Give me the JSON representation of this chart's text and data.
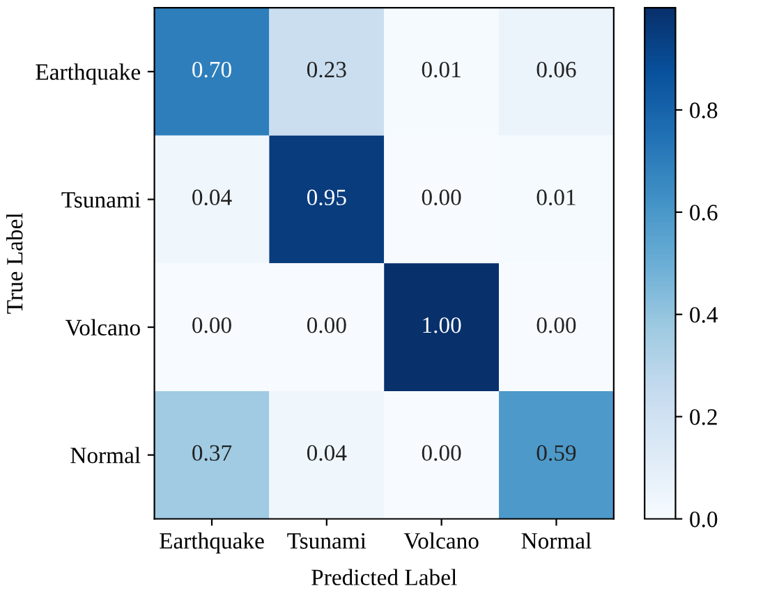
{
  "chart_data": {
    "type": "heatmap",
    "xlabel": "Predicted Label",
    "ylabel": "True Label",
    "categories": [
      "Earthquake",
      "Tsunami",
      "Volcano",
      "Normal"
    ],
    "y_categories": [
      "Earthquake",
      "Tsunami",
      "Volcano",
      "Normal"
    ],
    "cells": [
      [
        0.7,
        0.23,
        0.01,
        0.06
      ],
      [
        0.04,
        0.95,
        0.0,
        0.01
      ],
      [
        0.0,
        0.0,
        1.0,
        0.0
      ],
      [
        0.37,
        0.04,
        0.0,
        0.59
      ]
    ],
    "cell_labels": [
      [
        "0.70",
        "0.23",
        "0.01",
        "0.06"
      ],
      [
        "0.04",
        "0.95",
        "0.00",
        "0.01"
      ],
      [
        "0.00",
        "0.00",
        "1.00",
        "0.00"
      ],
      [
        "0.37",
        "0.04",
        "0.00",
        "0.59"
      ]
    ],
    "clim": [
      0,
      1
    ],
    "cticks": [
      {
        "value": 0,
        "label": "0.0"
      },
      {
        "value": 0.2,
        "label": "0.2"
      },
      {
        "value": 0.4,
        "label": "0.4"
      },
      {
        "value": 0.6,
        "label": "0.6"
      },
      {
        "value": 0.8,
        "label": "0.8"
      }
    ]
  }
}
